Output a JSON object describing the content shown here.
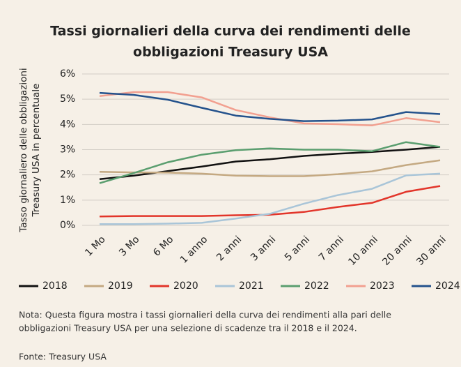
{
  "chart_data": {
    "type": "line",
    "title": [
      "Tassi giornalieri della curva dei rendimenti delle",
      "obbligazioni Treasury USA"
    ],
    "y_label": [
      "Tasso giornaliero delle obbligazioni",
      "Treasury USA in percentuale"
    ],
    "categories": [
      "1 Mo",
      "3 Mo",
      "6 Mo",
      "1 anno",
      "2 anni",
      "3 anni",
      "5 anni",
      "7 anni",
      "10 anni",
      "20 anni",
      "30 anni"
    ],
    "series": [
      {
        "name": "2018",
        "color": "#111111",
        "values": [
          1.83,
          1.97,
          2.15,
          2.33,
          2.53,
          2.62,
          2.75,
          2.84,
          2.91,
          3.0,
          3.11
        ]
      },
      {
        "name": "2019",
        "color": "#c4a982",
        "values": [
          2.12,
          2.1,
          2.09,
          2.05,
          1.97,
          1.95,
          1.95,
          2.03,
          2.14,
          2.39,
          2.58
        ]
      },
      {
        "name": "2020",
        "color": "#e2352a",
        "values": [
          0.35,
          0.37,
          0.37,
          0.37,
          0.4,
          0.42,
          0.53,
          0.73,
          0.89,
          1.33,
          1.56
        ]
      },
      {
        "name": "2021",
        "color": "#a9c5d8",
        "values": [
          0.05,
          0.05,
          0.07,
          0.1,
          0.27,
          0.46,
          0.86,
          1.2,
          1.45,
          1.98,
          2.05
        ]
      },
      {
        "name": "2022",
        "color": "#5a9e6f",
        "values": [
          1.67,
          2.07,
          2.5,
          2.8,
          2.98,
          3.05,
          3.0,
          3.0,
          2.94,
          3.3,
          3.11
        ]
      },
      {
        "name": "2023",
        "color": "#f2a090",
        "values": [
          5.12,
          5.28,
          5.28,
          5.07,
          4.57,
          4.28,
          4.04,
          4.01,
          3.96,
          4.25,
          4.09
        ]
      },
      {
        "name": "2024",
        "color": "#24528c",
        "values": [
          5.25,
          5.17,
          4.98,
          4.66,
          4.35,
          4.22,
          4.13,
          4.15,
          4.2,
          4.49,
          4.41
        ]
      }
    ],
    "ylim": [
      0,
      6
    ],
    "yticks": [
      {
        "value": 0,
        "label": "0%"
      },
      {
        "value": 1,
        "label": "1%"
      },
      {
        "value": 2,
        "label": "2%"
      },
      {
        "value": 3,
        "label": "3%"
      },
      {
        "value": 4,
        "label": "4%"
      },
      {
        "value": 5,
        "label": "5%"
      },
      {
        "value": 6,
        "label": "6%"
      }
    ],
    "grid": true,
    "legend": "bottom",
    "note": [
      "Nota: Questa figura mostra i tassi giornalieri della curva dei rendimenti alla pari delle",
      "obbligazioni Treasury USA per una selezione di scadenze tra il 2018 e il 2024."
    ],
    "source": "Fonte: Treasury USA"
  }
}
